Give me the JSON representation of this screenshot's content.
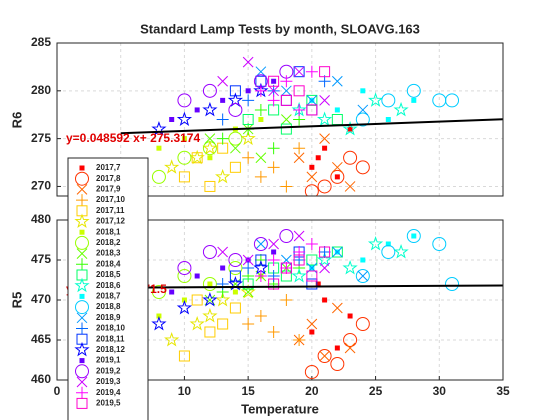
{
  "chart_data": [
    {
      "type": "scatter",
      "title": "Standard Lamp Tests by month, SLOAVG.163",
      "y_label": "R6",
      "xlim": [
        0,
        35
      ],
      "ylim": [
        269,
        285
      ],
      "yticks": [
        270,
        275,
        280,
        285
      ],
      "grid": true,
      "legend": "lower-left",
      "annotation": "y=0.048592 x+ 275.3174",
      "annotation_color": "#e00000",
      "fit": {
        "color": "#000000",
        "x": [
          5,
          35
        ],
        "values": [
          275.56,
          277.02
        ]
      },
      "series": [
        {
          "name": "2017,7",
          "color": "#ff0000",
          "marker": ".",
          "x": [
            20,
            21,
            22,
            23,
            20.5
          ],
          "values": [
            272,
            274,
            271,
            276,
            273
          ]
        },
        {
          "name": "2017,8",
          "color": "#ff3300",
          "marker": "o",
          "x": [
            21,
            22,
            23,
            24,
            20
          ],
          "values": [
            270,
            271,
            273,
            272,
            269.5
          ]
        },
        {
          "name": "2017,9",
          "color": "#ff6600",
          "marker": "x",
          "x": [
            19,
            20,
            21,
            22,
            23
          ],
          "values": [
            273,
            271,
            275,
            272,
            270
          ]
        },
        {
          "name": "2017,10",
          "color": "#ff9900",
          "marker": "+",
          "x": [
            16,
            17,
            18,
            19,
            15
          ],
          "values": [
            271,
            272,
            270,
            274,
            273
          ]
        },
        {
          "name": "2017,11",
          "color": "#ffcc00",
          "marker": "s",
          "x": [
            10,
            12,
            14,
            11,
            13
          ],
          "values": [
            271,
            270,
            272,
            273,
            274
          ]
        },
        {
          "name": "2017,12",
          "color": "#e6e600",
          "marker": "p",
          "x": [
            9,
            11,
            13,
            15,
            12
          ],
          "values": [
            272,
            273,
            271,
            275,
            274
          ]
        },
        {
          "name": "2018,1",
          "color": "#ccff00",
          "marker": ".",
          "x": [
            8,
            10,
            12,
            14,
            16
          ],
          "values": [
            274,
            275,
            273,
            276,
            277
          ]
        },
        {
          "name": "2018,2",
          "color": "#99ff00",
          "marker": "o",
          "x": [
            6,
            8,
            10,
            12,
            14
          ],
          "values": [
            272,
            271,
            273,
            274,
            275
          ]
        },
        {
          "name": "2018,3",
          "color": "#66ff00",
          "marker": "x",
          "x": [
            12,
            14,
            15,
            16,
            18
          ],
          "values": [
            275,
            274,
            276,
            273,
            277
          ]
        },
        {
          "name": "2018,4",
          "color": "#33ff00",
          "marker": "+",
          "x": [
            13,
            15,
            17,
            19,
            16
          ],
          "values": [
            275,
            276,
            274,
            277,
            278
          ]
        },
        {
          "name": "2018,5",
          "color": "#00ff66",
          "marker": "s",
          "x": [
            15,
            17,
            18,
            20,
            22
          ],
          "values": [
            277,
            278,
            276,
            279,
            277
          ]
        },
        {
          "name": "2018,6",
          "color": "#00ffcc",
          "marker": "p",
          "x": [
            19,
            21,
            23,
            25,
            27
          ],
          "values": [
            278,
            277,
            276,
            279,
            278
          ]
        },
        {
          "name": "2018,7",
          "color": "#00ffff",
          "marker": ".",
          "x": [
            20,
            22,
            24,
            26,
            28
          ],
          "values": [
            279,
            278,
            280,
            277,
            279
          ]
        },
        {
          "name": "2018,8",
          "color": "#00ccff",
          "marker": "o",
          "x": [
            24,
            26,
            28,
            30,
            31
          ],
          "values": [
            277,
            279,
            280,
            279,
            279
          ]
        },
        {
          "name": "2018,9",
          "color": "#0099ff",
          "marker": "x",
          "x": [
            18,
            20,
            22,
            24,
            16
          ],
          "values": [
            280,
            279,
            281,
            278,
            282
          ]
        },
        {
          "name": "2018,10",
          "color": "#0066ff",
          "marker": "+",
          "x": [
            15,
            17,
            19,
            21,
            13
          ],
          "values": [
            279,
            280,
            278,
            281,
            277
          ]
        },
        {
          "name": "2018,11",
          "color": "#0033ff",
          "marker": "s",
          "x": [
            14,
            16,
            18,
            20,
            19
          ],
          "values": [
            280,
            281,
            279,
            278,
            282
          ]
        },
        {
          "name": "2018,12",
          "color": "#0000ff",
          "marker": "p",
          "x": [
            8,
            10,
            12,
            14,
            16
          ],
          "values": [
            276,
            277,
            278,
            279,
            280
          ]
        },
        {
          "name": "2019,1",
          "color": "#6600ff",
          "marker": ".",
          "x": [
            9,
            11,
            13,
            15,
            17
          ],
          "values": [
            277,
            278,
            279,
            280,
            281
          ]
        },
        {
          "name": "2019,2",
          "color": "#9900ff",
          "marker": "o",
          "x": [
            10,
            12,
            14,
            16,
            18
          ],
          "values": [
            279,
            280,
            278,
            281,
            282
          ]
        },
        {
          "name": "2019,3",
          "color": "#cc00ff",
          "marker": "x",
          "x": [
            13,
            15,
            17,
            19,
            21
          ],
          "values": [
            281,
            283,
            280,
            282,
            279
          ]
        },
        {
          "name": "2019,4",
          "color": "#ff00ff",
          "marker": "+",
          "x": [
            16,
            17,
            18,
            19,
            20
          ],
          "values": [
            280,
            279,
            281,
            278,
            282
          ]
        },
        {
          "name": "2019,5",
          "color": "#ff00cc",
          "marker": "s",
          "x": [
            17,
            18,
            19,
            20,
            21
          ],
          "values": [
            281,
            279,
            280,
            278,
            282
          ]
        }
      ]
    },
    {
      "type": "scatter",
      "x_label": "Temperature",
      "y_label": "R5",
      "xlim": [
        0,
        35
      ],
      "ylim": [
        460,
        480
      ],
      "xticks": [
        0,
        5,
        10,
        15,
        20,
        25,
        30,
        35
      ],
      "yticks": [
        460,
        465,
        470,
        475,
        480
      ],
      "grid": true,
      "annotation": "y=0.0090 x+ 471.5",
      "annotation_color": "#e00000",
      "fit": {
        "color": "#000000",
        "x": [
          5,
          35
        ],
        "values": [
          471.55,
          471.82
        ]
      },
      "series": [
        {
          "color": "#ff0000",
          "marker": ".",
          "x": [
            20,
            21,
            22,
            23,
            20.5
          ],
          "values": [
            466,
            470,
            464,
            468,
            472
          ]
        },
        {
          "color": "#ff3300",
          "marker": "o",
          "x": [
            21,
            22,
            23,
            24,
            20
          ],
          "values": [
            463,
            462,
            465,
            467,
            461
          ]
        },
        {
          "color": "#ff6600",
          "marker": "x",
          "x": [
            19,
            20,
            21,
            22,
            23
          ],
          "values": [
            465,
            467,
            463,
            469,
            464
          ]
        },
        {
          "color": "#ff9900",
          "marker": "+",
          "x": [
            16,
            17,
            18,
            19,
            15
          ],
          "values": [
            468,
            466,
            470,
            465,
            467
          ]
        },
        {
          "color": "#ffcc00",
          "marker": "s",
          "x": [
            10,
            12,
            14,
            11,
            13
          ],
          "values": [
            463,
            466,
            469,
            470,
            467
          ]
        },
        {
          "color": "#e6e600",
          "marker": "p",
          "x": [
            9,
            11,
            13,
            15,
            12
          ],
          "values": [
            465,
            467,
            470,
            471,
            468
          ]
        },
        {
          "color": "#ccff00",
          "marker": ".",
          "x": [
            8,
            10,
            12,
            14,
            16
          ],
          "values": [
            468,
            470,
            472,
            471,
            473
          ]
        },
        {
          "color": "#99ff00",
          "marker": "o",
          "x": [
            6,
            8,
            10,
            12,
            14
          ],
          "values": [
            470,
            471,
            473,
            472,
            474
          ]
        },
        {
          "color": "#66ff00",
          "marker": "x",
          "x": [
            12,
            14,
            15,
            16,
            18
          ],
          "values": [
            470,
            472,
            471,
            473,
            474
          ]
        },
        {
          "color": "#33ff00",
          "marker": "+",
          "x": [
            13,
            15,
            17,
            19,
            16
          ],
          "values": [
            471,
            473,
            472,
            474,
            475
          ]
        },
        {
          "color": "#00ff66",
          "marker": "s",
          "x": [
            15,
            17,
            18,
            20,
            22
          ],
          "values": [
            472,
            474,
            473,
            475,
            476
          ]
        },
        {
          "color": "#00ffcc",
          "marker": "p",
          "x": [
            19,
            21,
            23,
            25,
            27
          ],
          "values": [
            473,
            475,
            474,
            477,
            476
          ]
        },
        {
          "color": "#00ffff",
          "marker": ".",
          "x": [
            20,
            22,
            24,
            26,
            28
          ],
          "values": [
            474,
            476,
            475,
            477,
            478
          ]
        },
        {
          "color": "#00ccff",
          "marker": "o",
          "x": [
            24,
            26,
            28,
            30,
            31
          ],
          "values": [
            473,
            476,
            478,
            477,
            472
          ]
        },
        {
          "color": "#0099ff",
          "marker": "x",
          "x": [
            18,
            20,
            22,
            24,
            16
          ],
          "values": [
            475,
            474,
            476,
            473,
            477
          ]
        },
        {
          "color": "#0066ff",
          "marker": "+",
          "x": [
            15,
            17,
            19,
            21,
            13
          ],
          "values": [
            474,
            473,
            475,
            476,
            472
          ]
        },
        {
          "color": "#0033ff",
          "marker": "s",
          "x": [
            14,
            16,
            18,
            20,
            19
          ],
          "values": [
            473,
            475,
            474,
            472,
            476
          ]
        },
        {
          "color": "#0000ff",
          "marker": "p",
          "x": [
            8,
            10,
            12,
            14,
            16
          ],
          "values": [
            467,
            469,
            470,
            472,
            474
          ]
        },
        {
          "color": "#6600ff",
          "marker": ".",
          "x": [
            9,
            11,
            13,
            15,
            17
          ],
          "values": [
            471,
            473,
            474,
            475,
            476
          ]
        },
        {
          "color": "#9900ff",
          "marker": "o",
          "x": [
            10,
            12,
            14,
            16,
            18
          ],
          "values": [
            474,
            476,
            475,
            477,
            478
          ]
        },
        {
          "color": "#cc00ff",
          "marker": "x",
          "x": [
            13,
            15,
            17,
            19,
            21
          ],
          "values": [
            476,
            475,
            477,
            478,
            474
          ]
        },
        {
          "color": "#ff00ff",
          "marker": "+",
          "x": [
            16,
            17,
            18,
            19,
            20
          ],
          "values": [
            473,
            475,
            474,
            476,
            477
          ]
        },
        {
          "color": "#ff00cc",
          "marker": "s",
          "x": [
            17,
            18,
            19,
            20,
            21
          ],
          "values": [
            472,
            474,
            475,
            473,
            476
          ]
        }
      ]
    }
  ]
}
